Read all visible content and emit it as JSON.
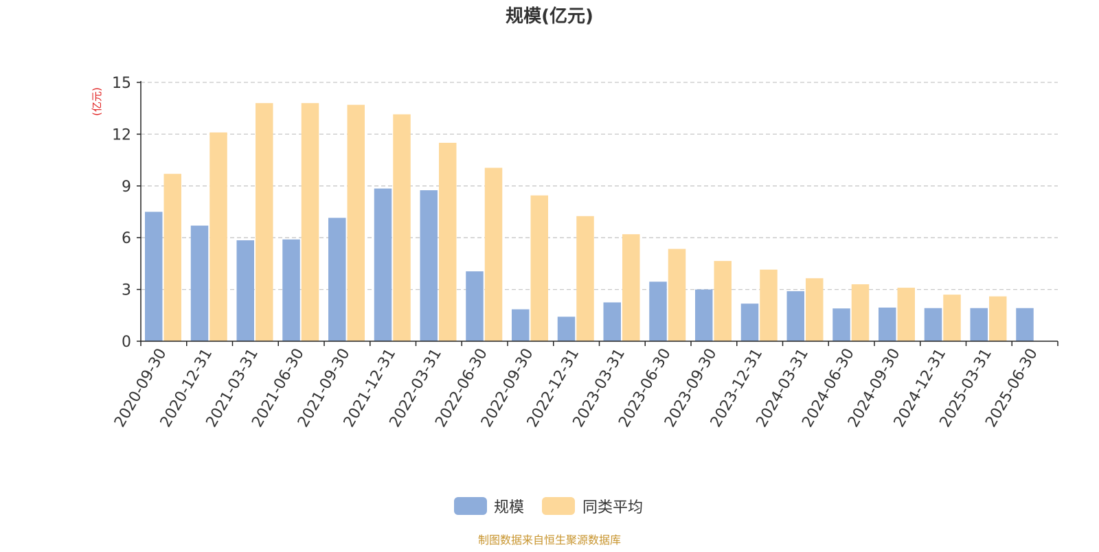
{
  "colors": {
    "series_0": "#8eaddb",
    "series_1": "#fdd89a",
    "title": "#333333",
    "unit_label": "#e02020",
    "source": "#c8952f",
    "axis": "#222222",
    "grid": "#c8c8c8"
  },
  "source_note": "制图数据来自恒生聚源数据库",
  "chart_data": {
    "type": "bar",
    "title": "规模(亿元)",
    "ylabel": "(亿元)",
    "xlabel": "",
    "ylim": [
      0,
      15
    ],
    "yticks": [
      0,
      3,
      6,
      9,
      12,
      15
    ],
    "grid": true,
    "legend_position": "bottom",
    "categories": [
      "2020-09-30",
      "2020-12-31",
      "2021-03-31",
      "2021-06-30",
      "2021-09-30",
      "2021-12-31",
      "2022-03-31",
      "2022-06-30",
      "2022-09-30",
      "2022-12-31",
      "2023-03-31",
      "2023-06-30",
      "2023-09-30",
      "2023-12-31",
      "2024-03-31",
      "2024-06-30",
      "2024-09-30",
      "2024-12-31",
      "2025-03-31",
      "2025-06-30"
    ],
    "series": [
      {
        "name": "规模",
        "values": [
          7.5,
          6.7,
          5.85,
          5.9,
          7.15,
          8.85,
          8.75,
          4.05,
          1.85,
          1.42,
          2.25,
          3.45,
          3.0,
          2.18,
          2.9,
          1.9,
          1.95,
          1.92,
          1.92,
          1.92
        ]
      },
      {
        "name": "同类平均",
        "values": [
          9.7,
          12.1,
          13.8,
          13.8,
          13.7,
          13.15,
          11.5,
          10.05,
          8.45,
          7.25,
          6.2,
          5.35,
          4.65,
          4.15,
          3.65,
          3.3,
          3.1,
          2.7,
          2.6,
          null
        ]
      }
    ]
  }
}
